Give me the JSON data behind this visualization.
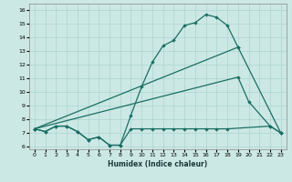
{
  "xlabel": "Humidex (Indice chaleur)",
  "bg_color": "#cce8e4",
  "grid_color": "#aad4d0",
  "line_color": "#1a6e64",
  "xlim": [
    -0.5,
    23.5
  ],
  "ylim": [
    5.8,
    16.5
  ],
  "xticks": [
    0,
    1,
    2,
    3,
    4,
    5,
    6,
    7,
    8,
    9,
    10,
    11,
    12,
    13,
    14,
    15,
    16,
    17,
    18,
    19,
    20,
    21,
    22,
    23
  ],
  "yticks": [
    6,
    7,
    8,
    9,
    10,
    11,
    12,
    13,
    14,
    15,
    16
  ],
  "series1_x": [
    0,
    1,
    2,
    3,
    4,
    5,
    6,
    7,
    8,
    9,
    10,
    11,
    12,
    13,
    14,
    15,
    16,
    17,
    18,
    19
  ],
  "series1_y": [
    7.3,
    7.1,
    7.5,
    7.5,
    7.1,
    6.5,
    6.7,
    6.1,
    6.1,
    8.3,
    10.4,
    12.2,
    13.4,
    13.8,
    14.9,
    15.1,
    15.7,
    15.5,
    14.9,
    13.3
  ],
  "series2_x": [
    0,
    19,
    23
  ],
  "series2_y": [
    7.3,
    13.3,
    7.0
  ],
  "series3_x": [
    0,
    19,
    20,
    22,
    23
  ],
  "series3_y": [
    7.3,
    11.1,
    9.3,
    7.5,
    7.0
  ],
  "series4_x": [
    0,
    1,
    2,
    3,
    4,
    5,
    6,
    7,
    8,
    9,
    10,
    11,
    12,
    13,
    14,
    15,
    16,
    17,
    18,
    22,
    23
  ],
  "series4_y": [
    7.3,
    7.1,
    7.5,
    7.5,
    7.1,
    6.5,
    6.7,
    6.1,
    6.1,
    7.3,
    7.3,
    7.3,
    7.3,
    7.3,
    7.3,
    7.3,
    7.3,
    7.3,
    7.3,
    7.5,
    7.0
  ]
}
